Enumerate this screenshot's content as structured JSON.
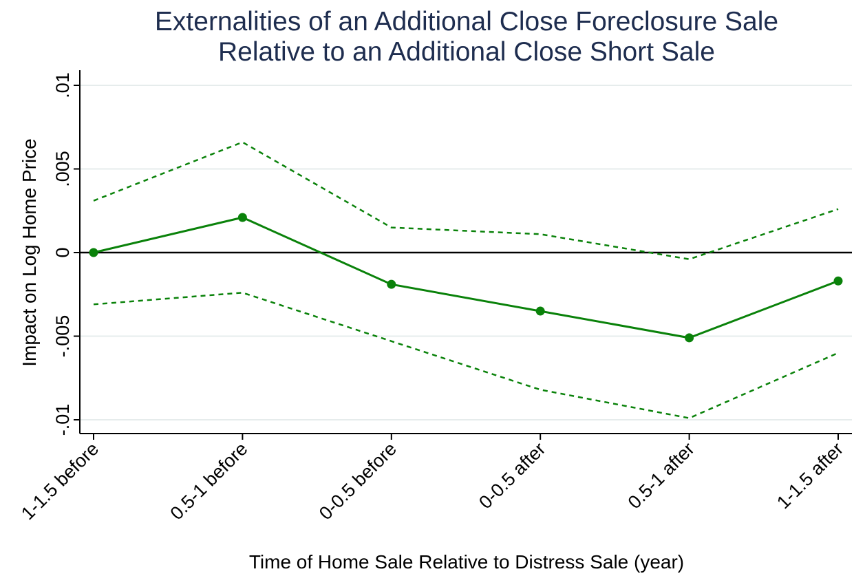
{
  "chart_data": {
    "type": "line",
    "title": "Externalities of an Additional Close Foreclosure Sale",
    "subtitle": "Relative to an Additional Close Short Sale",
    "xlabel": "Time of Home Sale Relative to Distress Sale (year)",
    "ylabel": "Impact on Log Home Price",
    "categories": [
      "1-1.5 before",
      "0.5-1 before",
      "0-0.5 before",
      "0-0.5 after",
      "0.5-1 after",
      "1-1.5 after"
    ],
    "ylim": [
      -0.0105,
      0.0108
    ],
    "yticks": [
      {
        "value": 0.01,
        "label": ".01"
      },
      {
        "value": 0.005,
        "label": ".005"
      },
      {
        "value": 0,
        "label": "0"
      },
      {
        "value": -0.005,
        "label": "-.005"
      },
      {
        "value": -0.01,
        "label": "-.01"
      }
    ],
    "grid": true,
    "reference_line": 0,
    "series": [
      {
        "role": "estimate",
        "style": "solid",
        "markers": true,
        "color": "#0a820a",
        "values": [
          0.0,
          0.0021,
          -0.0019,
          -0.0035,
          -0.0051,
          -0.0017
        ]
      },
      {
        "role": "upper",
        "style": "dashed",
        "markers": false,
        "color": "#0a820a",
        "values": [
          0.0031,
          0.0066,
          0.0015,
          0.0011,
          -0.0004,
          0.0026
        ]
      },
      {
        "role": "lower",
        "style": "dashed",
        "markers": false,
        "color": "#0a820a",
        "values": [
          -0.0031,
          -0.0024,
          -0.0053,
          -0.0082,
          -0.0099,
          -0.006
        ]
      }
    ]
  }
}
